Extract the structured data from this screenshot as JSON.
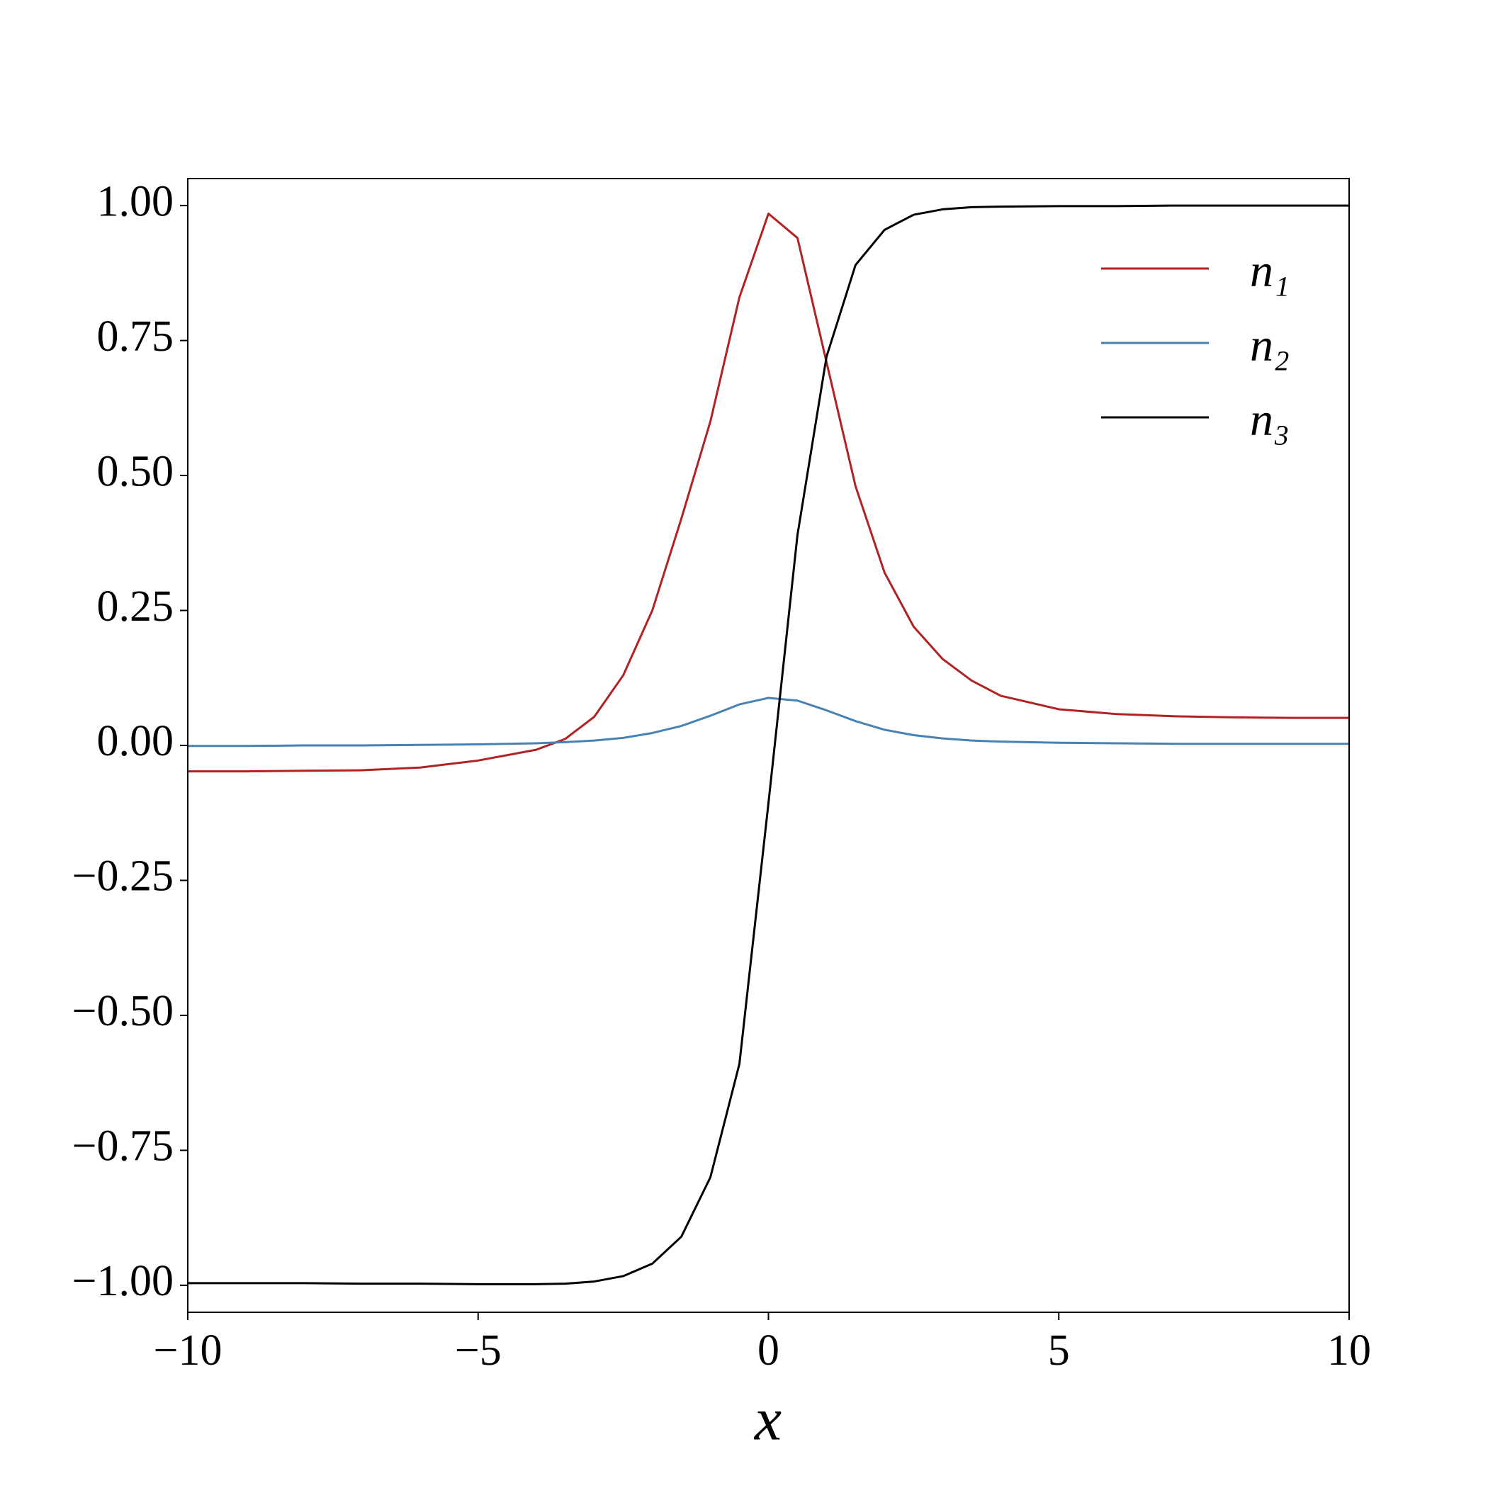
{
  "chart_data": {
    "type": "line",
    "xlabel": "x",
    "x": [
      -10,
      -9,
      -8,
      -7,
      -6,
      -5,
      -4,
      -3.5,
      -3,
      -2.5,
      -2,
      -1.5,
      -1,
      -0.5,
      0,
      0.5,
      1,
      1.5,
      2,
      2.5,
      3,
      3.5,
      4,
      5,
      6,
      7,
      8,
      9,
      10
    ],
    "series": [
      {
        "name": "n₁",
        "color": "#b22222",
        "values": [
          -0.048,
          -0.048,
          -0.047,
          -0.046,
          -0.041,
          -0.028,
          -0.008,
          0.012,
          0.053,
          0.13,
          0.25,
          0.42,
          0.6,
          0.83,
          0.985,
          0.94,
          0.71,
          0.48,
          0.32,
          0.22,
          0.16,
          0.12,
          0.092,
          0.067,
          0.058,
          0.054,
          0.052,
          0.051,
          0.051
        ]
      },
      {
        "name": "n₂",
        "color": "#4682b4",
        "values": [
          -0.001,
          -0.001,
          0,
          0,
          0.001,
          0.002,
          0.004,
          0.006,
          0.009,
          0.014,
          0.023,
          0.036,
          0.055,
          0.076,
          0.088,
          0.083,
          0.065,
          0.045,
          0.029,
          0.019,
          0.013,
          0.009,
          0.007,
          0.005,
          0.004,
          0.003,
          0.003,
          0.003,
          0.003
        ]
      },
      {
        "name": "n₃",
        "color": "#000000",
        "values": [
          -0.996,
          -0.996,
          -0.996,
          -0.997,
          -0.997,
          -0.998,
          -0.998,
          -0.997,
          -0.993,
          -0.983,
          -0.96,
          -0.91,
          -0.8,
          -0.59,
          -0.107,
          0.39,
          0.72,
          0.89,
          0.955,
          0.983,
          0.993,
          0.997,
          0.998,
          0.999,
          0.999,
          1,
          1,
          1,
          1
        ]
      }
    ],
    "xlim": [
      -10,
      10
    ],
    "xticks": [
      {
        "value": -10,
        "label": "−10"
      },
      {
        "value": -5,
        "label": "−5"
      },
      0,
      5,
      10
    ],
    "ylim": [
      -1.05,
      1.05
    ],
    "yticks": [
      {
        "value": -1,
        "label": "−1.00"
      },
      {
        "value": -0.75,
        "label": "−0.75"
      },
      {
        "value": -0.5,
        "label": "−0.50"
      },
      {
        "value": -0.25,
        "label": "−0.25"
      },
      {
        "value": 0,
        "label": "0.00"
      },
      {
        "value": 0.25,
        "label": "0.25"
      },
      {
        "value": 0.5,
        "label": "0.50"
      },
      {
        "value": 0.75,
        "label": "0.75"
      },
      {
        "value": 1,
        "label": "1.00"
      }
    ],
    "legend": "upper right",
    "grid": false
  }
}
